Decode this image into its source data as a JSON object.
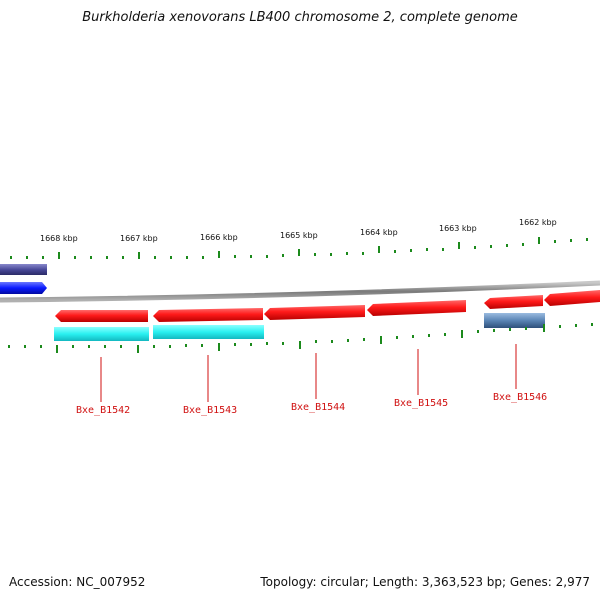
{
  "title": "Burkholderia xenovorans LB400 chromosome 2, complete genome",
  "footer": {
    "accession": "Accession: NC_007952",
    "summary": "Topology: circular; Length: 3,363,523 bp; Genes: 2,977"
  },
  "kbp_labels": [
    "1668 kbp",
    "1667 kbp",
    "1666 kbp",
    "1665 kbp",
    "1664 kbp",
    "1663 kbp",
    "1662 kbp"
  ],
  "gene_labels": [
    "Bxe_B1542",
    "Bxe_B1543",
    "Bxe_B1544",
    "Bxe_B1545",
    "Bxe_B1546"
  ],
  "colors": {
    "backbone": "#8a8a8a",
    "gene": "#ff1a1a",
    "cds": "#29f0f0",
    "other_feature": "#5a84b4",
    "dark_feature": "#4a4a9a",
    "blue_feature": "#0a1aff",
    "tick": "#1c8a1c",
    "label": "#d01010"
  }
}
